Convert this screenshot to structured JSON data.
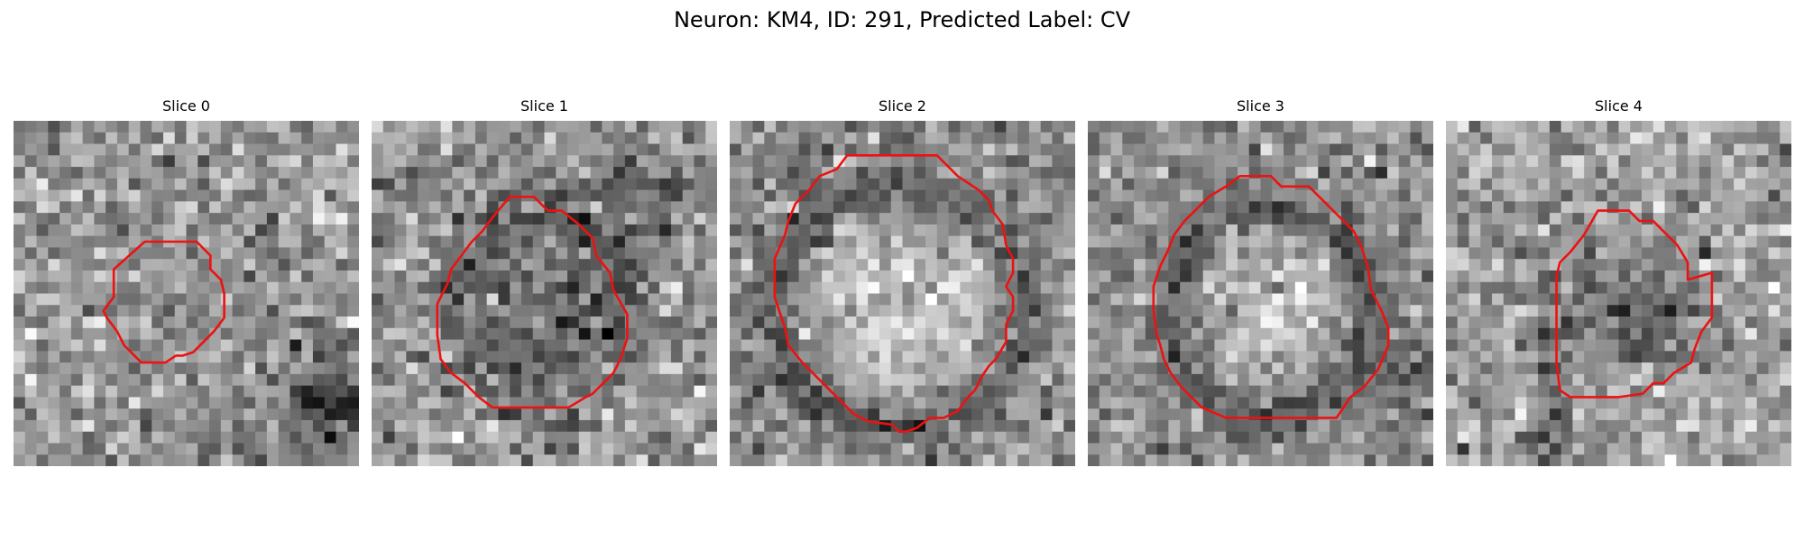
{
  "figure": {
    "title": "Neuron: KM4, ID: 291, Predicted Label: CV"
  },
  "panels": [
    {
      "title": "Slice 0"
    },
    {
      "title": "Slice 1"
    },
    {
      "title": "Slice 2"
    },
    {
      "title": "Slice 3"
    },
    {
      "title": "Slice 4"
    }
  ],
  "colors": {
    "contour": "#ee1111",
    "background": "#ffffff"
  }
}
